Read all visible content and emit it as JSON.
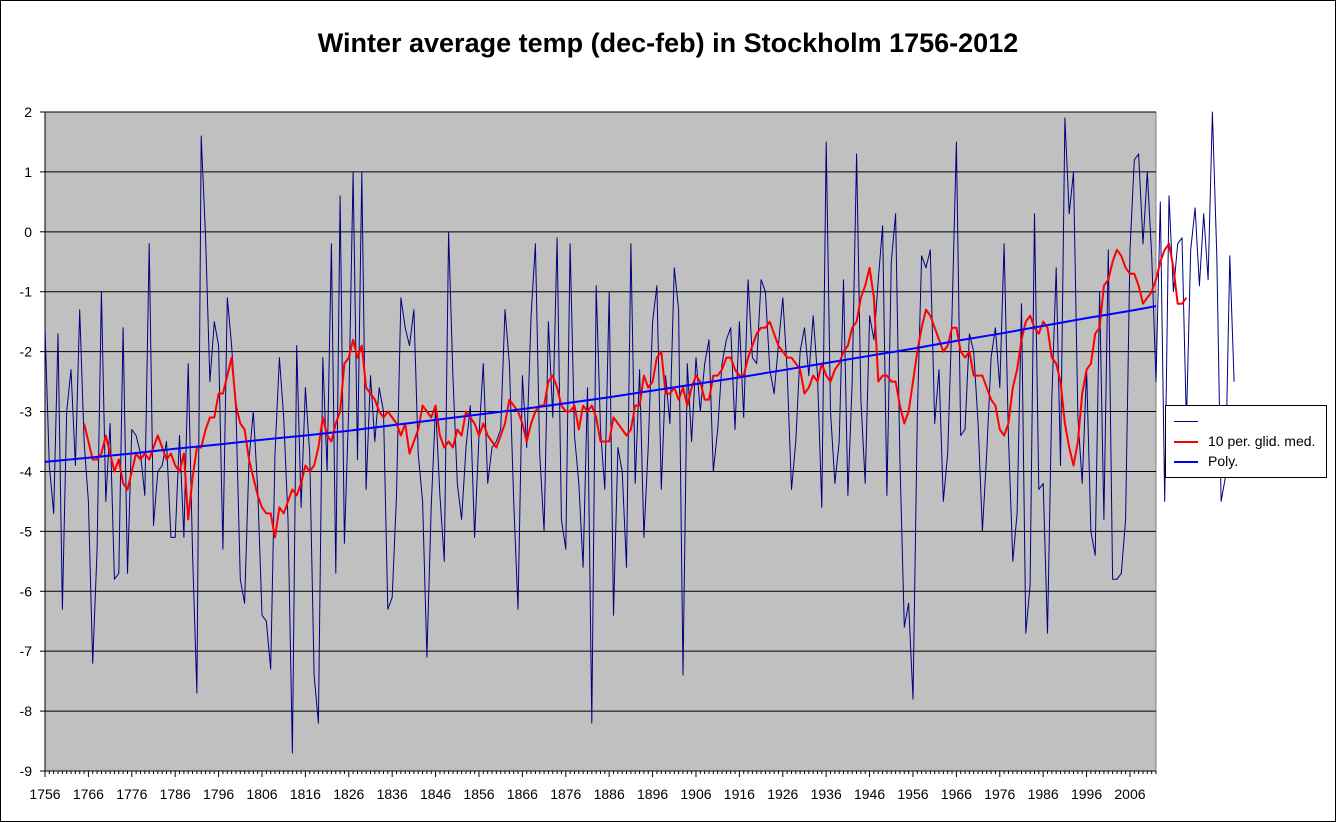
{
  "chart_data": {
    "type": "line",
    "title": "Winter average temp (dec-feb) in Stockholm 1756-2012",
    "xlabel": "",
    "ylabel": "",
    "xlim": [
      1756,
      2012
    ],
    "ylim": [
      -9,
      2
    ],
    "x_ticks": [
      "1756",
      "1766",
      "1776",
      "1786",
      "1796",
      "1806",
      "1816",
      "1826",
      "1836",
      "1846",
      "1856",
      "1866",
      "1876",
      "1886",
      "1896",
      "1906",
      "1916",
      "1926",
      "1936",
      "1946",
      "1956",
      "1966",
      "1976",
      "1986",
      "1996",
      "2006"
    ],
    "y_ticks": [
      "2",
      "1",
      "0",
      "-1",
      "-2",
      "-3",
      "-4",
      "-5",
      "-6",
      "-7",
      "-8",
      "-9"
    ],
    "grid": "horizontal",
    "legend_position": "right",
    "plot_background": "#c0c0c0",
    "x_start": 1756,
    "series": [
      {
        "name": "",
        "color": "#000080",
        "role": "annual",
        "values": [
          -1.6,
          -3.9,
          -4.7,
          -1.7,
          -6.3,
          -3.0,
          -2.3,
          -3.9,
          -1.3,
          -3.5,
          -4.5,
          -7.2,
          -5.3,
          -1.0,
          -4.5,
          -3.2,
          -5.8,
          -5.7,
          -1.6,
          -5.7,
          -3.3,
          -3.4,
          -3.7,
          -4.4,
          -0.2,
          -4.9,
          -4.0,
          -3.9,
          -3.5,
          -5.1,
          -5.1,
          -3.4,
          -5.1,
          -2.2,
          -5.4,
          -7.7,
          1.6,
          -0.1,
          -2.5,
          -1.5,
          -1.9,
          -5.3,
          -1.1,
          -1.9,
          -3.0,
          -5.8,
          -6.2,
          -3.8,
          -3.0,
          -4.3,
          -6.4,
          -6.5,
          -7.3,
          -3.7,
          -2.1,
          -3.1,
          -4.8,
          -8.7,
          -1.9,
          -4.6,
          -2.6,
          -3.7,
          -7.4,
          -8.2,
          -2.1,
          -4.0,
          -0.2,
          -5.7,
          0.6,
          -5.2,
          -2.9,
          1.0,
          -3.8,
          1.0,
          -4.3,
          -2.4,
          -3.5,
          -2.6,
          -3.0,
          -6.3,
          -6.1,
          -4.4,
          -1.1,
          -1.6,
          -1.9,
          -1.3,
          -3.7,
          -4.5,
          -7.1,
          -4.6,
          -2.9,
          -4.4,
          -5.5,
          0.0,
          -2.4,
          -4.2,
          -4.8,
          -3.6,
          -2.9,
          -5.1,
          -3.4,
          -2.2,
          -4.2,
          -3.6,
          -3.5,
          -3.3,
          -1.3,
          -2.2,
          -4.5,
          -6.3,
          -2.4,
          -3.6,
          -1.4,
          -0.2,
          -3.7,
          -5.0,
          -1.5,
          -3.1,
          -0.1,
          -4.8,
          -5.3,
          -0.2,
          -3.4,
          -4.2,
          -5.6,
          -2.6,
          -8.2,
          -0.9,
          -3.3,
          -4.3,
          -1.0,
          -6.4,
          -3.6,
          -4.0,
          -5.6,
          -0.2,
          -4.2,
          -2.3,
          -5.1,
          -3.6,
          -1.5,
          -0.9,
          -4.3,
          -2.4,
          -3.2,
          -0.6,
          -1.3,
          -7.4,
          -2.2,
          -3.5,
          -2.1,
          -3.0,
          -2.2,
          -1.8,
          -4.0,
          -3.3,
          -2.2,
          -1.8,
          -1.6,
          -3.3,
          -1.5,
          -3.1,
          -0.8,
          -2.1,
          -2.2,
          -0.8,
          -1.0,
          -2.3,
          -2.7,
          -1.9,
          -1.1,
          -2.3,
          -4.3,
          -3.5,
          -2.0,
          -1.6,
          -2.4,
          -1.4,
          -2.4,
          -4.6,
          1.5,
          -3.0,
          -4.2,
          -3.5,
          -0.8,
          -4.4,
          -2.5,
          1.3,
          -2.8,
          -4.2,
          -1.4,
          -1.8,
          -0.8,
          0.1,
          -4.4,
          -0.5,
          0.3,
          -3.8,
          -6.6,
          -6.2,
          -7.8,
          -3.1,
          -0.4,
          -0.6,
          -0.3,
          -3.2,
          -2.3,
          -4.5,
          -3.7,
          -1.4,
          1.5,
          -3.4,
          -3.3,
          -1.7,
          -2.0,
          -3.2,
          -5.0,
          -3.7,
          -2.1,
          -1.6,
          -2.6,
          -0.2,
          -3.4,
          -5.5,
          -4.7,
          -1.2,
          -6.7,
          -5.9,
          0.3,
          -4.3,
          -4.2,
          -6.7,
          -2.8,
          -0.6,
          -3.9,
          1.9,
          0.3,
          1.0,
          -3.1,
          -4.2,
          -2.3,
          -5.0,
          -5.4,
          -1.0,
          -4.8,
          -0.3,
          -5.8,
          -5.8,
          -5.7,
          -4.8,
          -0.3,
          1.2,
          1.3,
          -0.2,
          1.0,
          -0.4,
          -2.5,
          0.5,
          -4.5,
          0.6,
          -1.0,
          -0.2,
          -0.1,
          -3.2,
          -0.3,
          0.4,
          -0.9,
          0.3,
          -0.8,
          2.0,
          -0.4,
          -4.5,
          -4.1,
          -0.4,
          -2.5
        ]
      },
      {
        "name": "10 per. glid. med.",
        "color": "#ff0000",
        "role": "moving_average",
        "start_year": 1765,
        "values": [
          -3.2,
          -3.5,
          -3.8,
          -3.8,
          -3.7,
          -3.4,
          -3.7,
          -4.0,
          -3.8,
          -4.2,
          -4.3,
          -4.0,
          -3.7,
          -3.8,
          -3.7,
          -3.8,
          -3.6,
          -3.4,
          -3.6,
          -3.8,
          -3.7,
          -3.9,
          -4.0,
          -3.7,
          -4.8,
          -4.1,
          -3.6,
          -3.6,
          -3.3,
          -3.1,
          -3.1,
          -2.7,
          -2.7,
          -2.4,
          -2.1,
          -2.9,
          -3.2,
          -3.3,
          -3.8,
          -4.1,
          -4.4,
          -4.6,
          -4.7,
          -4.7,
          -5.1,
          -4.6,
          -4.7,
          -4.5,
          -4.3,
          -4.4,
          -4.2,
          -3.9,
          -4.0,
          -3.9,
          -3.6,
          -3.1,
          -3.4,
          -3.5,
          -3.2,
          -3.0,
          -2.2,
          -2.1,
          -1.8,
          -2.1,
          -1.9,
          -2.6,
          -2.7,
          -2.8,
          -3.0,
          -3.1,
          -3.0,
          -3.1,
          -3.2,
          -3.4,
          -3.2,
          -3.7,
          -3.5,
          -3.3,
          -2.9,
          -3.0,
          -3.1,
          -2.9,
          -3.4,
          -3.6,
          -3.5,
          -3.6,
          -3.3,
          -3.4,
          -3.0,
          -3.1,
          -3.2,
          -3.4,
          -3.2,
          -3.4,
          -3.5,
          -3.6,
          -3.4,
          -3.2,
          -2.8,
          -2.9,
          -3.0,
          -3.2,
          -3.5,
          -3.2,
          -3.0,
          -2.9,
          -2.9,
          -2.5,
          -2.4,
          -2.6,
          -2.9,
          -3.0,
          -3.0,
          -2.9,
          -3.3,
          -2.9,
          -3.0,
          -2.9,
          -3.1,
          -3.5,
          -3.5,
          -3.5,
          -3.1,
          -3.2,
          -3.3,
          -3.4,
          -3.3,
          -2.9,
          -2.9,
          -2.4,
          -2.6,
          -2.5,
          -2.1,
          -2.0,
          -2.7,
          -2.7,
          -2.6,
          -2.8,
          -2.6,
          -2.9,
          -2.6,
          -2.4,
          -2.5,
          -2.8,
          -2.8,
          -2.4,
          -2.4,
          -2.3,
          -2.1,
          -2.1,
          -2.3,
          -2.4,
          -2.4,
          -2.1,
          -1.9,
          -1.7,
          -1.6,
          -1.6,
          -1.5,
          -1.7,
          -1.9,
          -2.0,
          -2.1,
          -2.1,
          -2.2,
          -2.3,
          -2.7,
          -2.6,
          -2.4,
          -2.5,
          -2.2,
          -2.4,
          -2.5,
          -2.3,
          -2.2,
          -2.0,
          -1.9,
          -1.6,
          -1.5,
          -1.1,
          -0.9,
          -0.6,
          -1.1,
          -2.5,
          -2.4,
          -2.4,
          -2.5,
          -2.5,
          -2.9,
          -3.2,
          -3.0,
          -2.5,
          -2.0,
          -1.6,
          -1.3,
          -1.4,
          -1.6,
          -1.8,
          -2.0,
          -1.9,
          -1.6,
          -1.6,
          -2.0,
          -2.1,
          -2.0,
          -2.4,
          -2.4,
          -2.4,
          -2.6,
          -2.8,
          -2.9,
          -3.3,
          -3.4,
          -3.2,
          -2.6,
          -2.3,
          -1.8,
          -1.5,
          -1.4,
          -1.6,
          -1.7,
          -1.5,
          -1.6,
          -2.1,
          -2.2,
          -2.5,
          -3.2,
          -3.6,
          -3.9,
          -3.5,
          -2.7,
          -2.3,
          -2.2,
          -1.7,
          -1.6,
          -0.9,
          -0.8,
          -0.5,
          -0.3,
          -0.4,
          -0.6,
          -0.7,
          -0.7,
          -0.9,
          -1.2,
          -1.1,
          -1.0,
          -0.8,
          -0.5,
          -0.3,
          -0.2,
          -0.6,
          -1.2,
          -1.2,
          -1.1
        ]
      },
      {
        "name": "Poly.",
        "color": "#0000ff",
        "role": "trend",
        "x": [
          1756,
          1766,
          1776,
          1786,
          1796,
          1806,
          1816,
          1826,
          1836,
          1846,
          1856,
          1866,
          1876,
          1886,
          1896,
          1906,
          1916,
          1926,
          1936,
          1946,
          1956,
          1966,
          1976,
          1986,
          1996,
          2006,
          2012
        ],
        "values": [
          -3.84,
          -3.77,
          -3.7,
          -3.62,
          -3.55,
          -3.47,
          -3.4,
          -3.32,
          -3.23,
          -3.14,
          -3.05,
          -2.96,
          -2.86,
          -2.76,
          -2.65,
          -2.54,
          -2.43,
          -2.31,
          -2.19,
          -2.07,
          -1.95,
          -1.82,
          -1.7,
          -1.57,
          -1.44,
          -1.32,
          -1.24
        ]
      }
    ]
  }
}
